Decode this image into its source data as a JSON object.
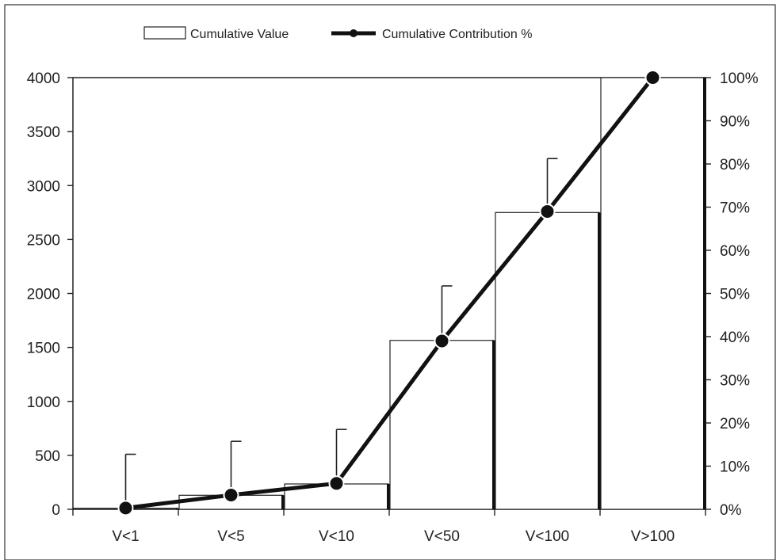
{
  "chart_data": {
    "type": "bar",
    "categories": [
      "V<1",
      "V<5",
      "V<10",
      "V<50",
      "V<100",
      "V>100"
    ],
    "series": [
      {
        "name": "Cumulative Value",
        "type": "bar",
        "axis": "left",
        "values": [
          10,
          130,
          235,
          1565,
          2750,
          4000
        ]
      },
      {
        "name": "Cumulative Contribution %",
        "type": "line",
        "axis": "right",
        "values": [
          0.3,
          3.3,
          6,
          39,
          69,
          100
        ],
        "error_upper_left_units": [
          510,
          630,
          740,
          2070,
          3250,
          null
        ]
      }
    ],
    "y_left": {
      "ylim": [
        0,
        4000
      ],
      "ticks": [
        "0",
        "500",
        "1000",
        "1500",
        "2000",
        "2500",
        "3000",
        "3500",
        "4000"
      ]
    },
    "y_right": {
      "ylim": [
        0,
        100
      ],
      "ticks": [
        "0%",
        "10%",
        "20%",
        "30%",
        "40%",
        "50%",
        "60%",
        "70%",
        "80%",
        "90%",
        "100%"
      ]
    },
    "legend_position": "top-center",
    "grid": false
  }
}
